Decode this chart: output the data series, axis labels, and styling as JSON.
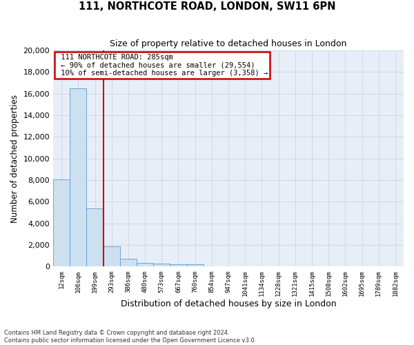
{
  "title1": "111, NORTHCOTE ROAD, LONDON, SW11 6PN",
  "title2": "Size of property relative to detached houses in London",
  "xlabel": "Distribution of detached houses by size in London",
  "ylabel": "Number of detached properties",
  "footnote": "Contains HM Land Registry data © Crown copyright and database right 2024.\nContains public sector information licensed under the Open Government Licence v3.0.",
  "bar_labels": [
    "12sqm",
    "106sqm",
    "199sqm",
    "293sqm",
    "386sqm",
    "480sqm",
    "573sqm",
    "667sqm",
    "760sqm",
    "854sqm",
    "947sqm",
    "1041sqm",
    "1134sqm",
    "1228sqm",
    "1321sqm",
    "1415sqm",
    "1508sqm",
    "1602sqm",
    "1695sqm",
    "1789sqm",
    "1882sqm"
  ],
  "bar_values": [
    8100,
    16500,
    5400,
    1850,
    750,
    350,
    270,
    210,
    210,
    0,
    0,
    0,
    0,
    0,
    0,
    0,
    0,
    0,
    0,
    0,
    0
  ],
  "bar_color": "#cce0f0",
  "bar_edge_color": "#5b9bd5",
  "property_line_label": "111 NORTHCOTE ROAD: 285sqm",
  "annotation_line1": "← 90% of detached houses are smaller (29,554)",
  "annotation_line2": "10% of semi-detached houses are larger (3,358) →",
  "red_line_color": "#cc0000",
  "box_edge_color": "#cc0000",
  "ylim": [
    0,
    20000
  ],
  "yticks": [
    0,
    2000,
    4000,
    6000,
    8000,
    10000,
    12000,
    14000,
    16000,
    18000,
    20000
  ],
  "grid_color": "#d0d8e8",
  "bg_color": "#e8eef7",
  "property_line_xval": 2.5
}
